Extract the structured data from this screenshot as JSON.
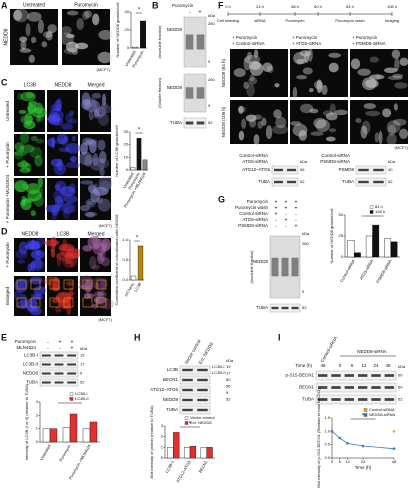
{
  "A": {
    "letter": "A",
    "labels": [
      "Untreated",
      "Puromycin"
    ],
    "side_label": "NEDD8",
    "cell_line": "(MCF7)",
    "chart": {
      "type": "bar",
      "y_label": "Number of NEDD8 granule/cell",
      "categories": [
        "Untreated",
        "Puromycin"
      ],
      "values": [
        1,
        30
      ],
      "colors": [
        "#ffffff",
        "#111111"
      ],
      "ylim": [
        0,
        40
      ],
      "yticks": [
        0,
        20,
        40
      ],
      "significance": "*"
    }
  },
  "B": {
    "letter": "B",
    "puromycin": "Puromycin",
    "signs": [
      "-",
      "+"
    ],
    "fractions": [
      "(Insoluble fraction)",
      "(Soluble fraction)"
    ],
    "blot_labels": [
      "NEDD8",
      "NEDD8",
      "TUBA"
    ],
    "markers": [
      "kDa",
      "260",
      "9",
      "260",
      "9",
      "52"
    ]
  },
  "C": {
    "letter": "C",
    "channels": [
      "LC3B",
      "NEDD8",
      "Merged"
    ],
    "rows": [
      "Untreated",
      "+ Puromycin",
      "+ Puromycin +MLN4924"
    ],
    "cell_line": "(MCF7)",
    "chart": {
      "type": "bar",
      "y_label": "Number of LC3B granule/cell",
      "categories": [
        "Untreated",
        "Puromycin",
        "Puromycin +MLN4924"
      ],
      "values": [
        2,
        25,
        8
      ],
      "colors": [
        "#ffffff",
        "#111111",
        "#888888"
      ],
      "ylim": [
        0,
        30
      ],
      "yticks": [
        0,
        10,
        20,
        30
      ],
      "significance": "*"
    }
  },
  "D": {
    "letter": "D",
    "channels": [
      "NEDD8",
      "LC3B",
      "Merged"
    ],
    "row": "+ Puromycin",
    "enlarged": "Enlarged",
    "cell_line": "(MCF7)",
    "chart": {
      "type": "bar",
      "y_label": "Correlation coefficient of colocalization with NEDD8",
      "categories": [
        "mCherry",
        "LC3B"
      ],
      "values": [
        0.1,
        0.85
      ],
      "colors": [
        "#ffffff",
        "#b8860b"
      ],
      "ylim": [
        0,
        1
      ],
      "yticks": [
        {
          "value": 0,
          "label": "0.0"
        },
        0.5,
        {
          "value": 1,
          "label": "1.0"
        }
      ],
      "significance": "*"
    }
  },
  "E": {
    "letter": "E",
    "rows": [
      "Puromycin",
      "MLN4924"
    ],
    "signs": [
      [
        "-",
        "+",
        "+"
      ],
      [
        "-",
        "-",
        "+"
      ]
    ],
    "blot_labels": [
      "LC3B-I",
      "LC3B-II",
      "NEDD8",
      "TUBA"
    ],
    "markers": [
      "kDa",
      "19",
      "17",
      "9",
      "52"
    ],
    "chart": {
      "type": "bar",
      "y_label": "Intensity of LC3B (I or II) (relative to TUBA)",
      "categories": [
        "Untreated",
        "Puromycin",
        "Puromycin +MLN4924"
      ],
      "series": [
        {
          "name": "LC3B-I",
          "color": "#ffffff",
          "values": [
            1,
            1.1,
            1
          ]
        },
        {
          "name": "LC3B-II",
          "color": "#e03030",
          "values": [
            1,
            2.1,
            1.5
          ]
        }
      ],
      "ylim": [
        0,
        3
      ],
      "yticks": [
        0,
        1,
        2,
        3
      ],
      "significance": "*"
    }
  },
  "F": {
    "letter": "F",
    "times": [
      "0 h",
      "24 h",
      "48 h",
      "60 h",
      "84 h",
      "108 h"
    ],
    "events": [
      "Cell seeding",
      "siRNA",
      "Puromycin",
      "Puromycin wash",
      "Imaging"
    ],
    "columns": [
      [
        "+ Puromycin",
        "+ Control-siRNA"
      ],
      [
        "+ Puromycin",
        "+ ATG5-siRNA"
      ],
      [
        "+ Puromycin",
        "+ PSMD8-siRNA"
      ]
    ],
    "rows": [
      "NEDD8 (84 h)",
      "NEDD8 (108 h)"
    ],
    "cell_line": "(MCF7)",
    "blot1": {
      "header": [
        "Control-siRNA",
        "ATG5-siRNA"
      ],
      "rows": [
        "ATG12–ATG5",
        "TUBA"
      ],
      "markers": [
        "kDa",
        "56",
        "52"
      ]
    },
    "blot2": {
      "header": [
        "Control-siRNA",
        "PSMD8-siRNA"
      ],
      "rows": [
        "PSMD8",
        "TUBA"
      ],
      "markers": [
        "kDa",
        "40",
        "52"
      ]
    }
  },
  "G": {
    "letter": "G",
    "rows": [
      "Puromycin",
      "Puromycin wash",
      "Control-siRNA",
      "ATG5-siRNA",
      "PSMD8-siRNA"
    ],
    "signs": [
      [
        "+",
        "+",
        "+"
      ],
      [
        "+",
        "+",
        "+"
      ],
      [
        "+",
        "-",
        "-"
      ],
      [
        "-",
        "+",
        "-"
      ],
      [
        "-",
        "-",
        "+"
      ]
    ],
    "fraction": "(Insoluble fraction)",
    "blot_labels": [
      "NEDD8",
      "TUBA"
    ],
    "markers": [
      "kDa",
      "260",
      "9",
      "52"
    ],
    "chart": {
      "type": "bar",
      "y_label": "Number of NEDD8 granule/cell",
      "categories": [
        "Control-siRNA",
        "ATG5-siRNA",
        "PSMD8-siRNA"
      ],
      "series": [
        {
          "name": "84 h",
          "color": "#ffffff",
          "values": [
            20,
            25,
            22
          ]
        },
        {
          "name": "108 h",
          "color": "#111111",
          "values": [
            5,
            38,
            18
          ]
        }
      ],
      "ylim": [
        0,
        50
      ],
      "yticks": [
        0,
        25,
        50
      ],
      "significance": "*"
    }
  },
  "H": {
    "letter": "H",
    "headers": [
      "Vector control",
      "Ect. NEDD8"
    ],
    "blot_labels": [
      "LC3B",
      "BECN1",
      "ATG12–ATG5",
      "NEDD8",
      "TUBA"
    ],
    "side_labels": [
      "LC3B-I",
      "LC3B-II"
    ],
    "markers": [
      "kDa",
      "19",
      "17",
      "60",
      "56",
      "9",
      "52"
    ],
    "chart": {
      "type": "bar",
      "y_label": "Blot intensity of protein (relative to TUBA)",
      "categories": [
        "LC3B-II",
        "ATG12–ATG5",
        "BECN1"
      ],
      "series": [
        {
          "name": "Vector control",
          "color": "#ffffff",
          "values": [
            1,
            1,
            1
          ]
        },
        {
          "name": "Ect. NEDD8",
          "color": "#e03030",
          "values": [
            2.4,
            1.1,
            1
          ]
        }
      ],
      "ylim": [
        0,
        3
      ],
      "yticks": [
        0,
        1,
        2,
        3
      ],
      "significance": "*"
    }
  },
  "I": {
    "letter": "I",
    "control": "Control-siRNA",
    "knockdown": "NEDD8-siRNA",
    "time_label": "Time (h)",
    "times": [
      "48",
      "0",
      "6",
      "12",
      "24",
      "48"
    ],
    "blot_labels": [
      "p-S15-BECN1",
      "BECN1",
      "TUBA"
    ],
    "markers": [
      "kDa",
      "60",
      "60",
      "52"
    ],
    "chart": {
      "type": "line",
      "y_label": "Blot intensity of p-S15-BECN1 (Relative to total BECN1)",
      "x_label": "Time (h)",
      "x": [
        0,
        6,
        12,
        24,
        48
      ],
      "xlim": [
        0,
        48
      ],
      "xticks": [
        0,
        6,
        12,
        24,
        48
      ],
      "series": [
        {
          "name": "Control-siRNA",
          "color": "#f0a030",
          "values": [
            null,
            null,
            null,
            null,
            1
          ]
        },
        {
          "name": "NEDD8-siRNA",
          "color": "#3a78c8",
          "values": [
            1,
            0.75,
            0.55,
            0.45,
            0.35
          ]
        }
      ],
      "ylim": [
        0,
        1.5
      ],
      "yticks": [
        {
          "value": 0,
          "label": "0.0"
        },
        0.5,
        {
          "value": 1,
          "label": "1.0"
        },
        1.5
      ],
      "significance": "*"
    }
  }
}
